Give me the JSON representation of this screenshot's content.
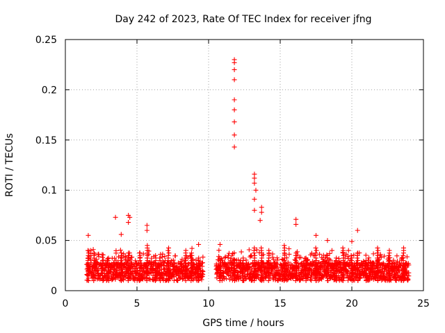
{
  "chart_data": {
    "type": "scatter",
    "title": "Day 242 of 2023, Rate Of TEC Index for receiver jfng",
    "xlabel": "GPS time / hours",
    "ylabel": "ROTI / TECUs",
    "xlim": [
      0,
      25
    ],
    "ylim": [
      0,
      0.25
    ],
    "xticks": [
      0,
      5,
      10,
      15,
      20,
      25
    ],
    "xtick_labels": [
      "0",
      "5",
      "10",
      "15",
      "20",
      "25"
    ],
    "yticks": [
      0,
      0.05,
      0.1,
      0.15,
      0.2,
      0.25
    ],
    "ytick_labels": [
      "0",
      "0.05",
      "0.1",
      "0.15",
      "0.2",
      "0.25"
    ],
    "grid": true,
    "marker": "+",
    "color": "#ff0000",
    "data_gaps_hours": [
      [
        9.6,
        10.5
      ]
    ],
    "notable_points": [
      {
        "x": 3.5,
        "y": 0.073
      },
      {
        "x": 11.8,
        "y": 0.23
      },
      {
        "x": 11.8,
        "y": 0.227
      },
      {
        "x": 11.8,
        "y": 0.22
      },
      {
        "x": 11.8,
        "y": 0.21
      },
      {
        "x": 11.8,
        "y": 0.19
      },
      {
        "x": 11.8,
        "y": 0.18
      },
      {
        "x": 11.8,
        "y": 0.168
      },
      {
        "x": 11.8,
        "y": 0.155
      },
      {
        "x": 11.8,
        "y": 0.143
      },
      {
        "x": 13.2,
        "y": 0.116
      },
      {
        "x": 13.2,
        "y": 0.112
      },
      {
        "x": 13.2,
        "y": 0.107
      },
      {
        "x": 13.3,
        "y": 0.1
      },
      {
        "x": 13.2,
        "y": 0.091
      },
      {
        "x": 13.7,
        "y": 0.083
      },
      {
        "x": 13.7,
        "y": 0.078
      },
      {
        "x": 13.2,
        "y": 0.08
      },
      {
        "x": 13.6,
        "y": 0.07
      },
      {
        "x": 16.1,
        "y": 0.071
      },
      {
        "x": 16.1,
        "y": 0.066
      },
      {
        "x": 20.4,
        "y": 0.06
      },
      {
        "x": 4.4,
        "y": 0.075
      },
      {
        "x": 4.5,
        "y": 0.073
      },
      {
        "x": 4.4,
        "y": 0.068
      },
      {
        "x": 5.7,
        "y": 0.065
      },
      {
        "x": 5.7,
        "y": 0.06
      },
      {
        "x": 1.6,
        "y": 0.055
      },
      {
        "x": 3.9,
        "y": 0.056
      },
      {
        "x": 10.8,
        "y": 0.046
      },
      {
        "x": 9.3,
        "y": 0.046
      },
      {
        "x": 17.5,
        "y": 0.055
      },
      {
        "x": 18.3,
        "y": 0.05
      },
      {
        "x": 20.0,
        "y": 0.049
      }
    ]
  }
}
